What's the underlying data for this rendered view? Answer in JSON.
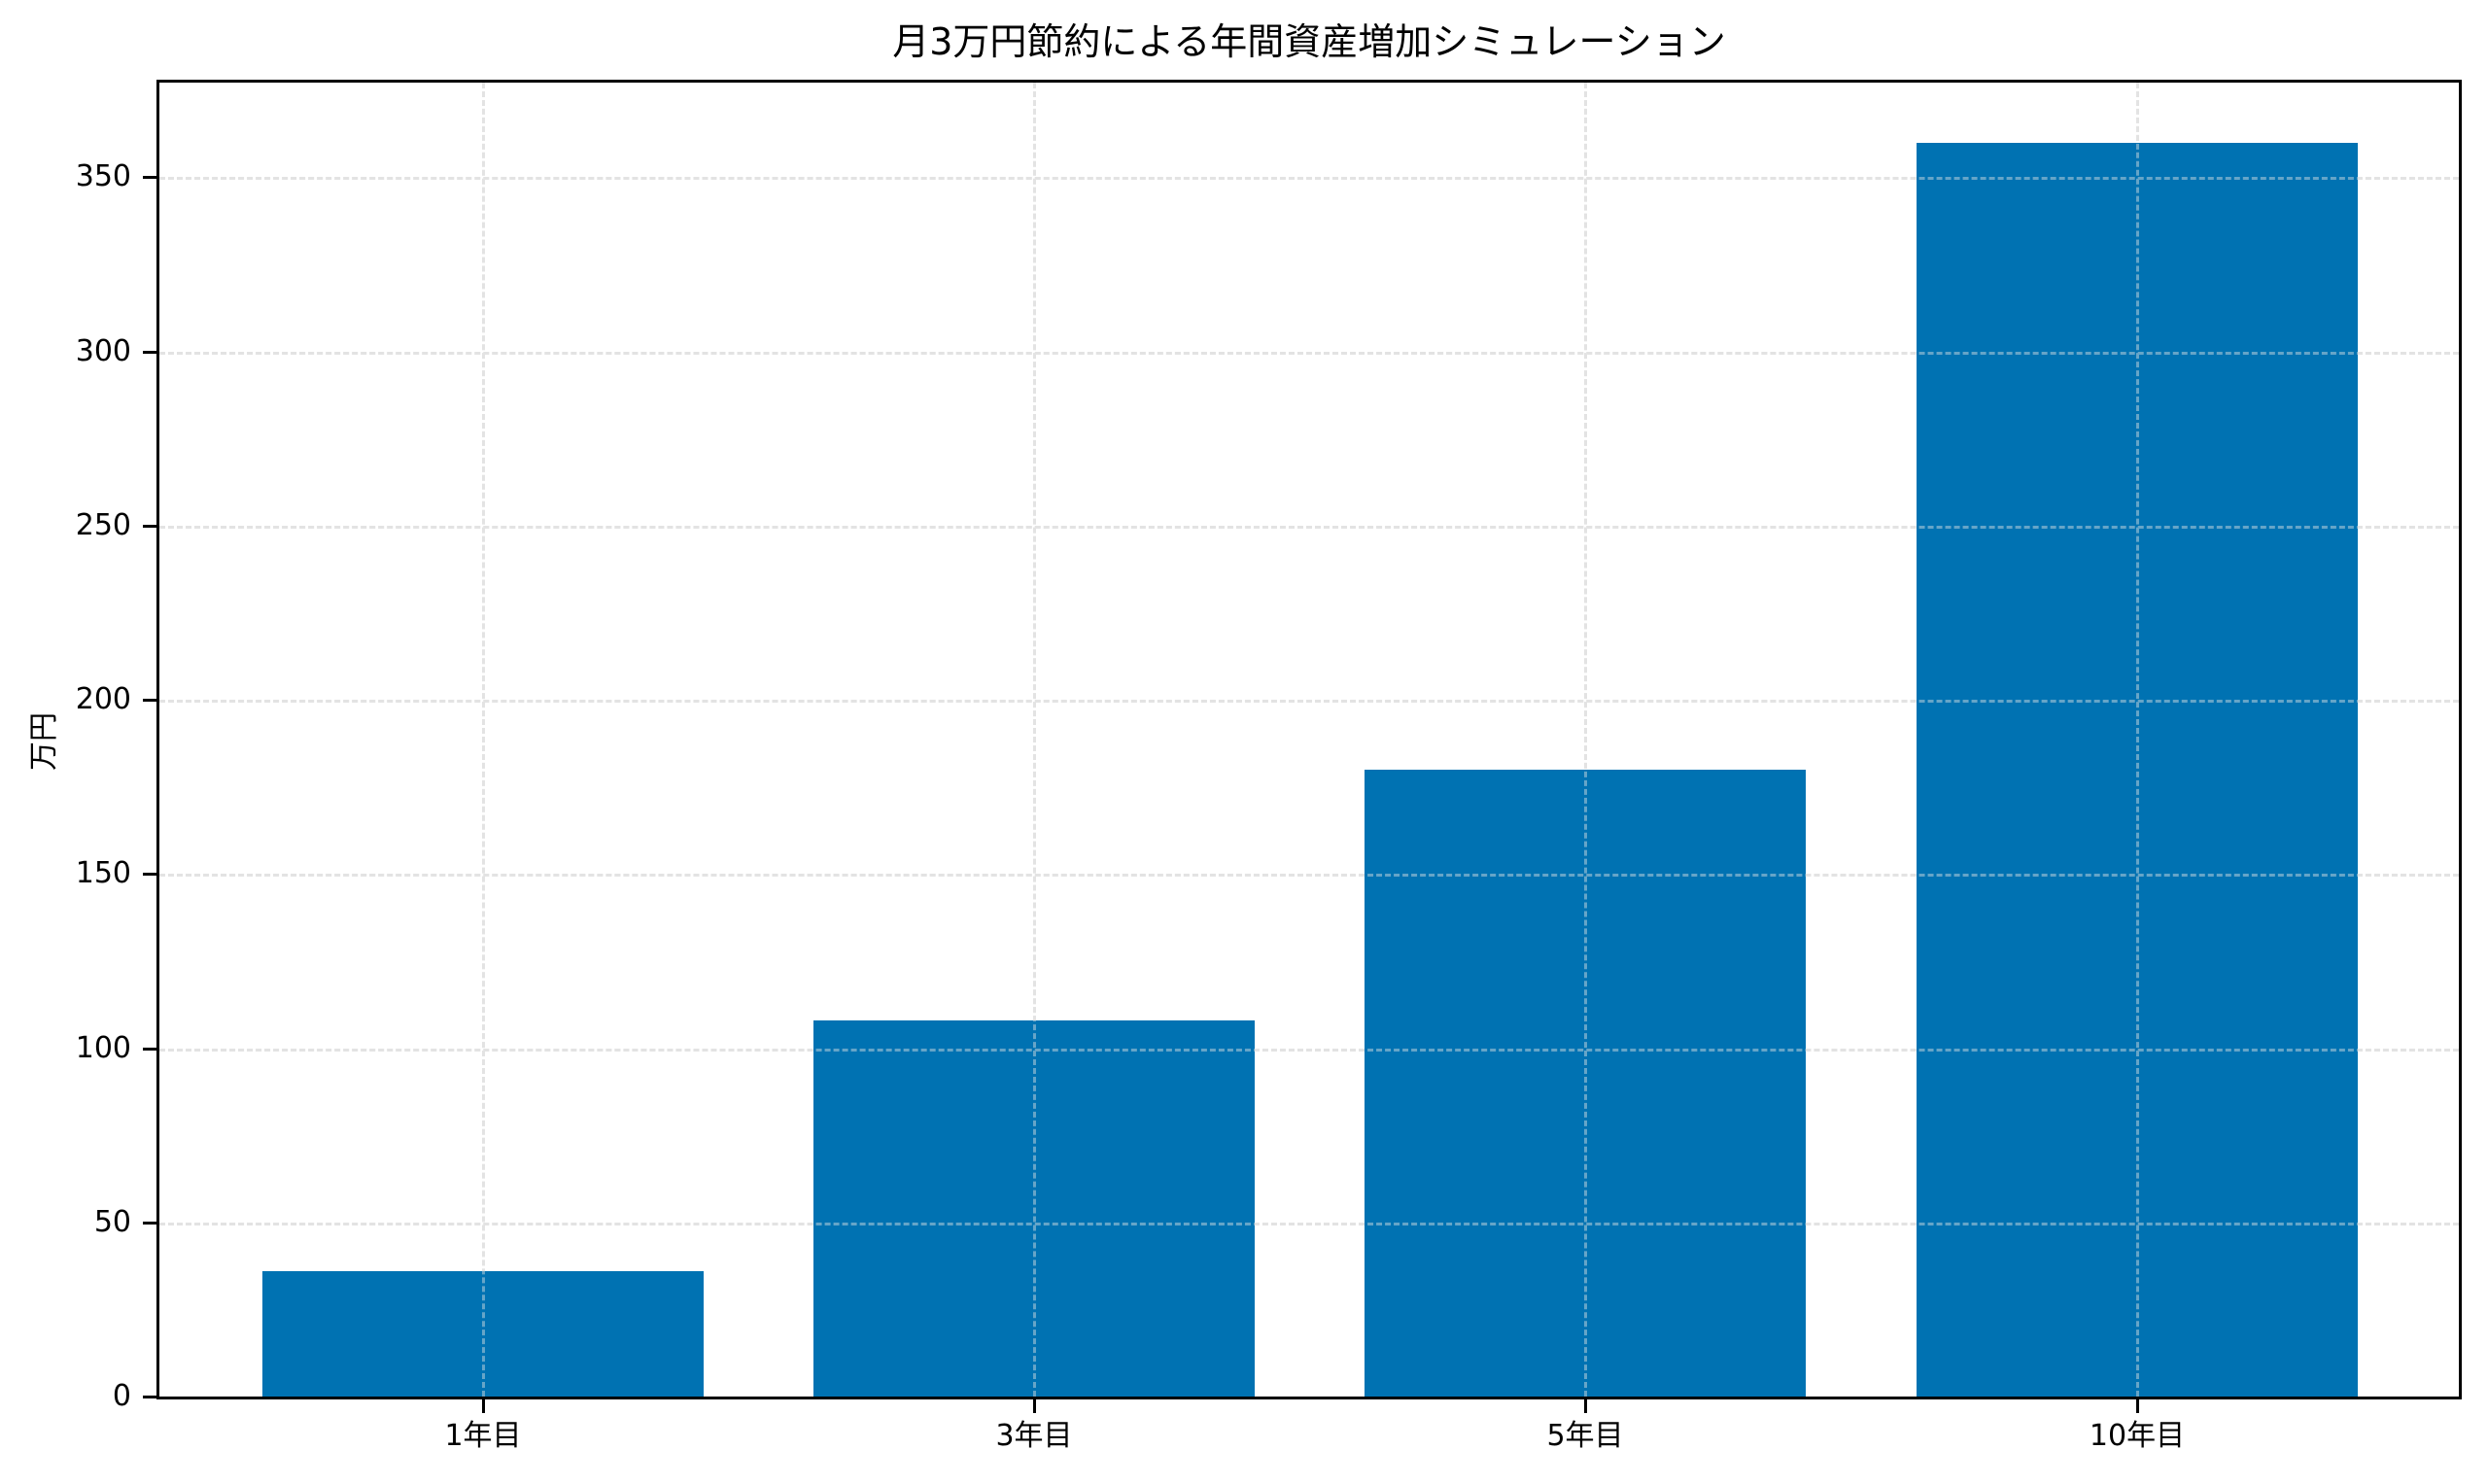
{
  "chart_data": {
    "type": "bar",
    "title": "月3万円節約による年間資産増加シミュレーション",
    "xlabel": "",
    "ylabel": "万円",
    "categories": [
      "1年目",
      "3年目",
      "5年目",
      "10年目"
    ],
    "values": [
      36,
      108,
      180,
      360
    ],
    "ylim": [
      0,
      378
    ],
    "yticks": [
      0,
      50,
      100,
      150,
      200,
      250,
      300,
      350
    ],
    "grid": true,
    "grid_style": "dashed",
    "bar_color": "#0072b2",
    "legend": null
  },
  "colors": {
    "bar": "#0072b2",
    "grid": "#e3e3e3",
    "axis": "#000000",
    "background": "#ffffff"
  }
}
